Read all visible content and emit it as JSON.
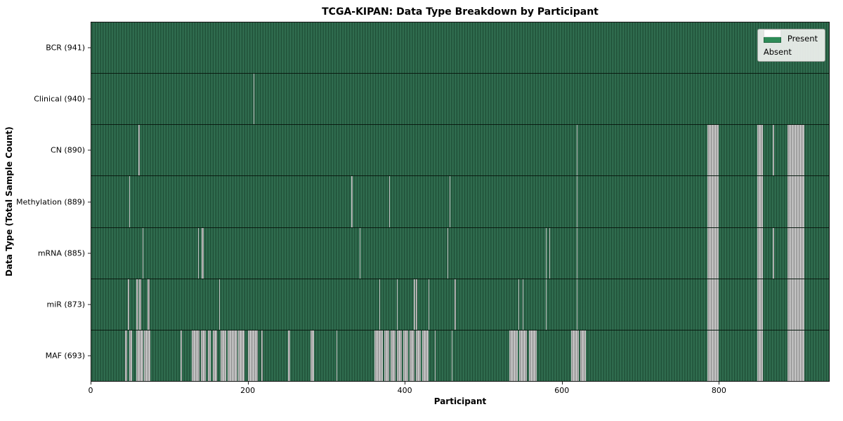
{
  "title": "TCGA-KIPAN: Data Type Breakdown by Participant",
  "x_axis": {
    "label": "Participant",
    "ticks": [
      0,
      200,
      400,
      600,
      800
    ],
    "max": 941
  },
  "y_axis": {
    "label": "Data Type (Total Sample Count)"
  },
  "legend": {
    "present_label": "Present",
    "absent_label": "Absent"
  },
  "colors": {
    "present": "#2e8b57",
    "present_dark": "#1d4c34",
    "absent": "#ffffff",
    "absent_gray": "#b5b5b5",
    "frame": "#141414",
    "legend_bg": "#ebeeeb"
  },
  "chart_data": {
    "type": "heatmap",
    "title": "TCGA-KIPAN: Data Type Breakdown by Participant",
    "xlabel": "Participant",
    "ylabel": "Data Type (Total Sample Count)",
    "x_range": [
      0,
      941
    ],
    "x_ticks": [
      0,
      200,
      400,
      600,
      800
    ],
    "legend_entries": [
      "Present",
      "Absent"
    ],
    "cell_states": {
      "present_color": "#2e8b57",
      "absent_color": "#ffffff"
    },
    "rows": [
      {
        "label": "BCR (941)",
        "data_type": "BCR",
        "sample_count": 941,
        "absent_segments": []
      },
      {
        "label": "Clinical (940)",
        "data_type": "Clinical",
        "sample_count": 940,
        "absent_segments": [
          [
            207,
            208
          ]
        ]
      },
      {
        "label": "CN (890)",
        "data_type": "CN",
        "sample_count": 890,
        "absent_segments": [
          [
            60,
            62
          ],
          [
            619,
            620
          ],
          [
            786,
            800
          ],
          [
            850,
            857
          ],
          [
            869,
            871
          ],
          [
            888,
            910
          ]
        ]
      },
      {
        "label": "Methylation (889)",
        "data_type": "Methylation",
        "sample_count": 889,
        "absent_segments": [
          [
            48,
            49
          ],
          [
            332,
            333
          ],
          [
            380,
            381
          ],
          [
            457,
            458
          ],
          [
            619,
            620
          ],
          [
            786,
            800
          ],
          [
            850,
            857
          ],
          [
            888,
            910
          ]
        ]
      },
      {
        "label": "mRNA (885)",
        "data_type": "mRNA",
        "sample_count": 885,
        "absent_segments": [
          [
            65,
            66
          ],
          [
            136,
            137
          ],
          [
            141,
            143
          ],
          [
            342,
            343
          ],
          [
            454,
            455
          ],
          [
            580,
            581
          ],
          [
            584,
            585
          ],
          [
            619,
            620
          ],
          [
            786,
            800
          ],
          [
            850,
            857
          ],
          [
            869,
            871
          ],
          [
            888,
            910
          ]
        ]
      },
      {
        "label": "miR (873)",
        "data_type": "miR",
        "sample_count": 873,
        "absent_segments": [
          [
            47,
            48
          ],
          [
            57,
            60
          ],
          [
            61,
            64
          ],
          [
            72,
            74
          ],
          [
            163,
            164
          ],
          [
            367,
            368
          ],
          [
            390,
            391
          ],
          [
            411,
            413
          ],
          [
            414,
            416
          ],
          [
            430,
            431
          ],
          [
            463,
            465
          ],
          [
            545,
            546
          ],
          [
            550,
            551
          ],
          [
            580,
            581
          ],
          [
            619,
            620
          ],
          [
            786,
            800
          ],
          [
            850,
            857
          ],
          [
            888,
            910
          ]
        ]
      },
      {
        "label": "MAF (693)",
        "data_type": "MAF",
        "sample_count": 693,
        "absent_segments": [
          [
            43,
            46
          ],
          [
            48,
            52
          ],
          [
            57,
            66
          ],
          [
            67,
            75
          ],
          [
            114,
            116
          ],
          [
            128,
            138
          ],
          [
            140,
            146
          ],
          [
            149,
            152
          ],
          [
            155,
            160
          ],
          [
            165,
            172
          ],
          [
            174,
            186
          ],
          [
            187,
            195
          ],
          [
            200,
            212
          ],
          [
            217,
            219
          ],
          [
            251,
            254
          ],
          [
            280,
            284
          ],
          [
            313,
            314
          ],
          [
            361,
            372
          ],
          [
            374,
            380
          ],
          [
            382,
            388
          ],
          [
            390,
            396
          ],
          [
            398,
            404
          ],
          [
            406,
            412
          ],
          [
            414,
            420
          ],
          [
            422,
            430
          ],
          [
            438,
            439
          ],
          [
            460,
            461
          ],
          [
            533,
            544
          ],
          [
            546,
            556
          ],
          [
            558,
            568
          ],
          [
            612,
            622
          ],
          [
            624,
            631
          ],
          [
            786,
            800
          ],
          [
            850,
            857
          ],
          [
            888,
            910
          ]
        ]
      }
    ]
  }
}
